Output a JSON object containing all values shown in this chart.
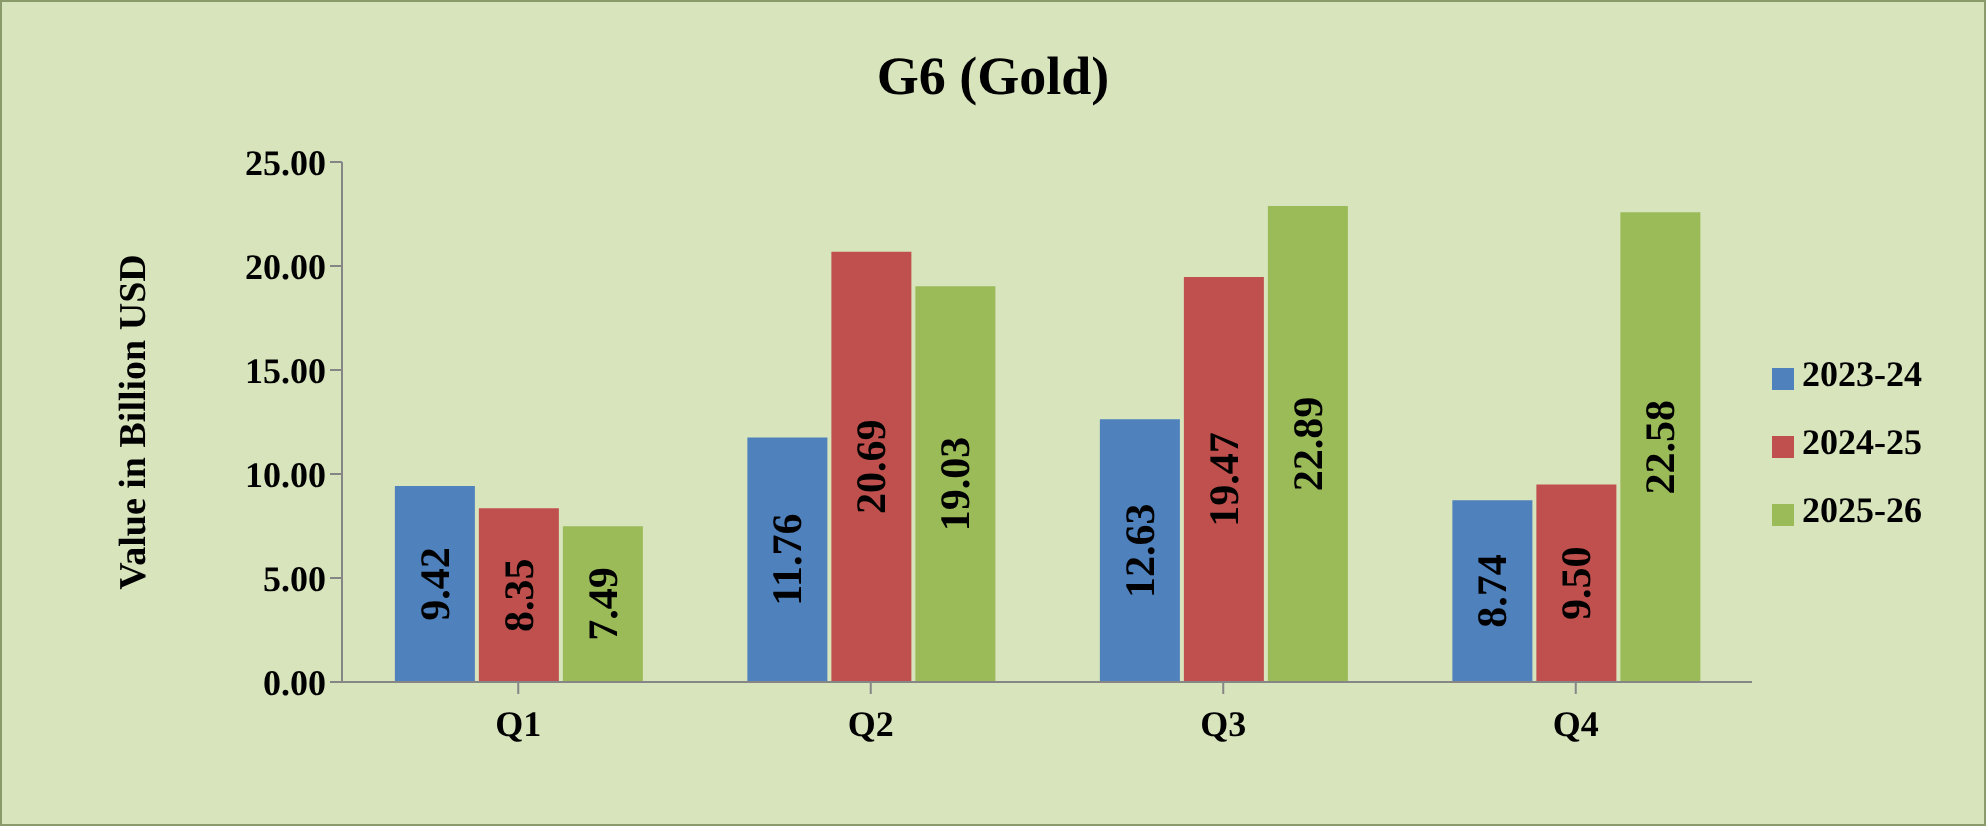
{
  "chart_data": {
    "type": "bar",
    "title": "G6 (Gold)",
    "ylabel": "Value in Billion USD",
    "categories": [
      "Q1",
      "Q2",
      "Q3",
      "Q4"
    ],
    "series": [
      {
        "name": "2023-24",
        "color": "#4f81bd",
        "values": [
          9.42,
          11.76,
          12.63,
          8.74
        ],
        "value_labels": [
          "9.42",
          "11.76",
          "12.63",
          "8.74"
        ]
      },
      {
        "name": "2024-25",
        "color": "#c0504d",
        "values": [
          8.35,
          20.69,
          19.47,
          9.5
        ],
        "value_labels": [
          "8.35",
          "20.69",
          "19.47",
          "9.50"
        ]
      },
      {
        "name": "2025-26",
        "color": "#9bbb59",
        "values": [
          7.49,
          19.03,
          22.89,
          22.58
        ],
        "value_labels": [
          "7.49",
          "19.03",
          "22.89",
          "22.58"
        ]
      }
    ],
    "ylim": [
      0,
      25
    ],
    "yticks": [
      {
        "value": 0,
        "label": "0.00"
      },
      {
        "value": 5,
        "label": "5.00"
      },
      {
        "value": 10,
        "label": "10.00"
      },
      {
        "value": 15,
        "label": "15.00"
      },
      {
        "value": 20,
        "label": "20.00"
      },
      {
        "value": 25,
        "label": "25.00"
      }
    ],
    "grid": false,
    "legend": "right"
  }
}
